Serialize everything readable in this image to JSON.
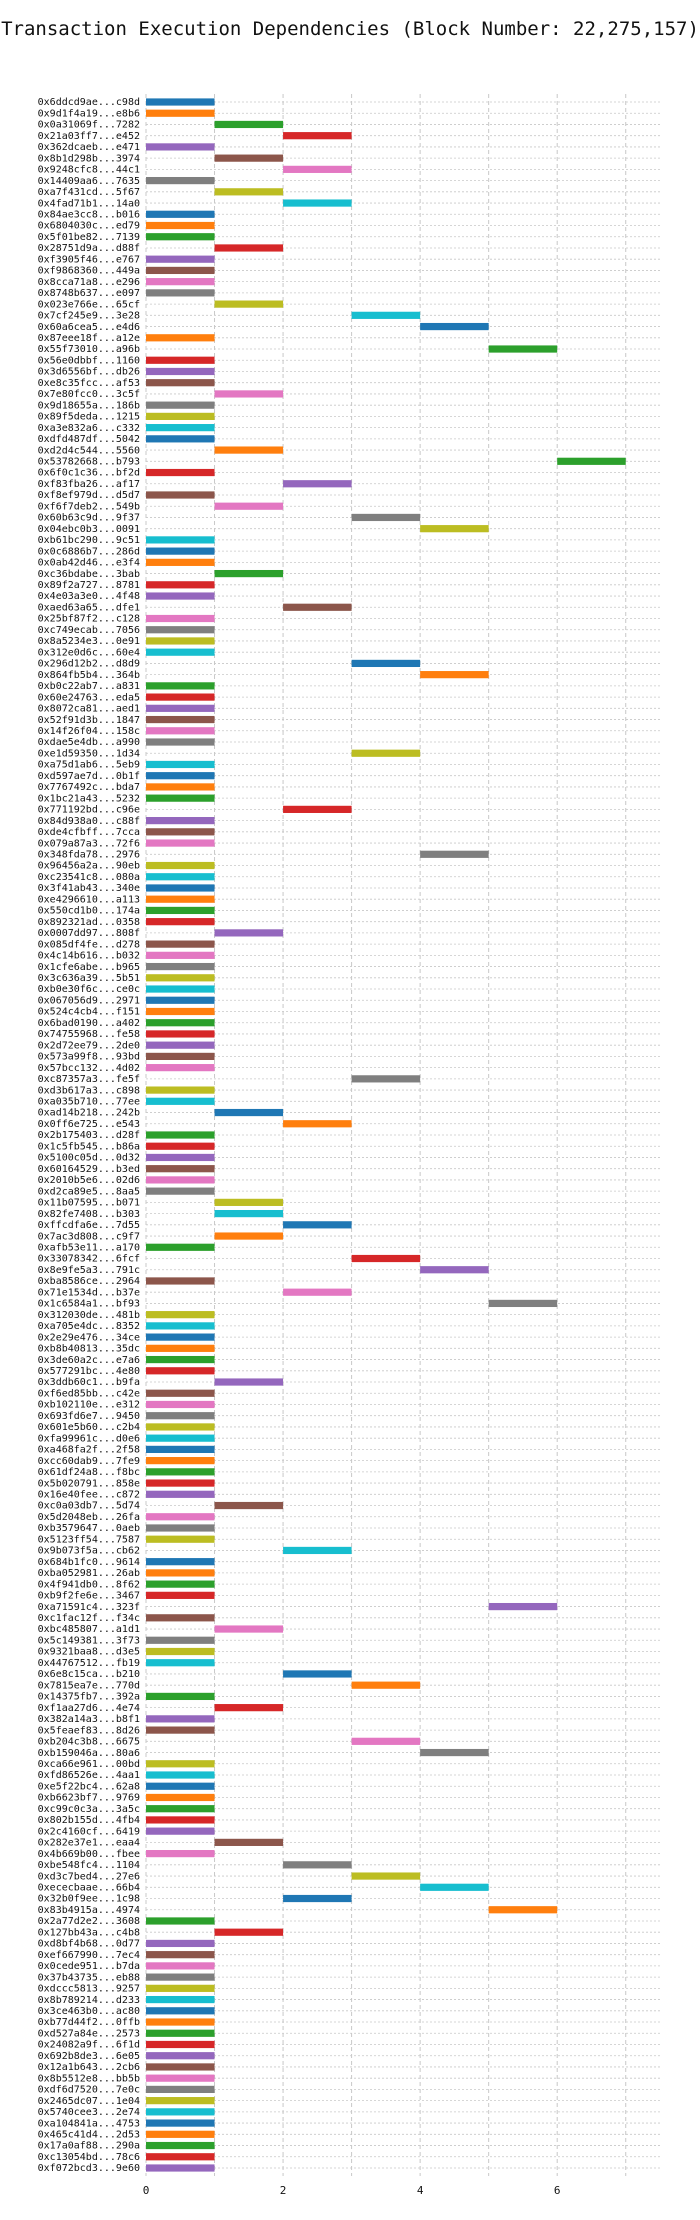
{
  "chart_data": {
    "type": "bar",
    "orientation": "horizontal",
    "title": "Transaction Execution Dependencies (Block Number: 22,275,157)",
    "xlabel": "",
    "ylabel": "",
    "xlim": [
      0,
      7.5
    ],
    "xticks": [
      "0",
      "2",
      "4",
      "6"
    ],
    "grid": true,
    "palette": [
      "#1f77b4",
      "#ff7f0e",
      "#2ca02c",
      "#d62728",
      "#9467bd",
      "#8c564b",
      "#e377c2",
      "#7f7f7f",
      "#bcbd22",
      "#17becf"
    ],
    "transactions": [
      {
        "id": "0x6ddcd9ae...c98d",
        "start": 0,
        "end": 1
      },
      {
        "id": "0x9d1f4a19...e8b6",
        "start": 0,
        "end": 1
      },
      {
        "id": "0x0a31069f...7282",
        "start": 1,
        "end": 2
      },
      {
        "id": "0x21a03ff7...e452",
        "start": 2,
        "end": 3
      },
      {
        "id": "0x362dcaeb...e471",
        "start": 0,
        "end": 1
      },
      {
        "id": "0x8b1d298b...3974",
        "start": 1,
        "end": 2
      },
      {
        "id": "0x9248cfc8...44c1",
        "start": 2,
        "end": 3
      },
      {
        "id": "0x14409aa6...7635",
        "start": 0,
        "end": 1
      },
      {
        "id": "0xa7f431cd...5f67",
        "start": 1,
        "end": 2
      },
      {
        "id": "0x4fad71b1...14a0",
        "start": 2,
        "end": 3
      },
      {
        "id": "0x84ae3cc8...b016",
        "start": 0,
        "end": 1
      },
      {
        "id": "0x6804030c...ed79",
        "start": 0,
        "end": 1
      },
      {
        "id": "0x5f01be82...7139",
        "start": 0,
        "end": 1
      },
      {
        "id": "0x28751d9a...d88f",
        "start": 1,
        "end": 2
      },
      {
        "id": "0xf3905f46...e767",
        "start": 0,
        "end": 1
      },
      {
        "id": "0xf9868360...449a",
        "start": 0,
        "end": 1
      },
      {
        "id": "0x8cca71a8...e296",
        "start": 0,
        "end": 1
      },
      {
        "id": "0x8748b637...e097",
        "start": 0,
        "end": 1
      },
      {
        "id": "0x023e766e...65cf",
        "start": 1,
        "end": 2
      },
      {
        "id": "0x7cf245e9...3e28",
        "start": 3,
        "end": 4
      },
      {
        "id": "0x60a6cea5...e4d6",
        "start": 4,
        "end": 5
      },
      {
        "id": "0x87eee18f...a12e",
        "start": 0,
        "end": 1
      },
      {
        "id": "0x55f73010...a96b",
        "start": 5,
        "end": 6
      },
      {
        "id": "0x56e0dbbf...1160",
        "start": 0,
        "end": 1
      },
      {
        "id": "0x3d6556bf...db26",
        "start": 0,
        "end": 1
      },
      {
        "id": "0xe8c35fcc...af53",
        "start": 0,
        "end": 1
      },
      {
        "id": "0x7e80fcc0...3c5f",
        "start": 1,
        "end": 2
      },
      {
        "id": "0x9d18655a...186b",
        "start": 0,
        "end": 1
      },
      {
        "id": "0x89f5deda...1215",
        "start": 0,
        "end": 1
      },
      {
        "id": "0xa3e832a6...c332",
        "start": 0,
        "end": 1
      },
      {
        "id": "0xdfd487df...5042",
        "start": 0,
        "end": 1
      },
      {
        "id": "0xd2d4c544...5560",
        "start": 1,
        "end": 2
      },
      {
        "id": "0x53782668...b793",
        "start": 6,
        "end": 7
      },
      {
        "id": "0x6f0c1c36...bf2d",
        "start": 0,
        "end": 1
      },
      {
        "id": "0xf83fba26...af17",
        "start": 2,
        "end": 3
      },
      {
        "id": "0xf8ef979d...d5d7",
        "start": 0,
        "end": 1
      },
      {
        "id": "0xf6f7deb2...549b",
        "start": 1,
        "end": 2
      },
      {
        "id": "0x60b63c9d...9f37",
        "start": 3,
        "end": 4
      },
      {
        "id": "0x04ebc0b3...0091",
        "start": 4,
        "end": 5
      },
      {
        "id": "0xb61bc290...9c51",
        "start": 0,
        "end": 1
      },
      {
        "id": "0x0c6886b7...286d",
        "start": 0,
        "end": 1
      },
      {
        "id": "0x0ab42d46...e3f4",
        "start": 0,
        "end": 1
      },
      {
        "id": "0xc36bdabe...3bab",
        "start": 1,
        "end": 2
      },
      {
        "id": "0x89f2a727...8781",
        "start": 0,
        "end": 1
      },
      {
        "id": "0x4e03a3e0...4f48",
        "start": 0,
        "end": 1
      },
      {
        "id": "0xaed63a65...dfe1",
        "start": 2,
        "end": 3
      },
      {
        "id": "0x25bf87f2...c128",
        "start": 0,
        "end": 1
      },
      {
        "id": "0xc749ecab...7056",
        "start": 0,
        "end": 1
      },
      {
        "id": "0x8a5234e3...0e91",
        "start": 0,
        "end": 1
      },
      {
        "id": "0x312e0d6c...60e4",
        "start": 0,
        "end": 1
      },
      {
        "id": "0x296d12b2...d8d9",
        "start": 3,
        "end": 4
      },
      {
        "id": "0x864fb5b4...364b",
        "start": 4,
        "end": 5
      },
      {
        "id": "0xb0c22ab7...a831",
        "start": 0,
        "end": 1
      },
      {
        "id": "0x60e24763...eda5",
        "start": 0,
        "end": 1
      },
      {
        "id": "0x8072ca81...aed1",
        "start": 0,
        "end": 1
      },
      {
        "id": "0x52f91d3b...1847",
        "start": 0,
        "end": 1
      },
      {
        "id": "0x14f26f04...158c",
        "start": 0,
        "end": 1
      },
      {
        "id": "0xdae5e4db...a990",
        "start": 0,
        "end": 1
      },
      {
        "id": "0xe1d59350...1d34",
        "start": 3,
        "end": 4
      },
      {
        "id": "0xa75d1ab6...5eb9",
        "start": 0,
        "end": 1
      },
      {
        "id": "0xd597ae7d...0b1f",
        "start": 0,
        "end": 1
      },
      {
        "id": "0x7767492c...bda7",
        "start": 0,
        "end": 1
      },
      {
        "id": "0x1bc21a43...5232",
        "start": 0,
        "end": 1
      },
      {
        "id": "0x771192bd...c96e",
        "start": 2,
        "end": 3
      },
      {
        "id": "0x84d938a0...c88f",
        "start": 0,
        "end": 1
      },
      {
        "id": "0xde4cfbff...7cca",
        "start": 0,
        "end": 1
      },
      {
        "id": "0x079a87a3...72f6",
        "start": 0,
        "end": 1
      },
      {
        "id": "0x348fda78...2976",
        "start": 4,
        "end": 5
      },
      {
        "id": "0x96456a2a...90eb",
        "start": 0,
        "end": 1
      },
      {
        "id": "0xc23541c8...080a",
        "start": 0,
        "end": 1
      },
      {
        "id": "0x3f41ab43...340e",
        "start": 0,
        "end": 1
      },
      {
        "id": "0xe4296610...a113",
        "start": 0,
        "end": 1
      },
      {
        "id": "0x550cd1b0...174a",
        "start": 0,
        "end": 1
      },
      {
        "id": "0x892321ad...0358",
        "start": 0,
        "end": 1
      },
      {
        "id": "0x0007dd97...808f",
        "start": 1,
        "end": 2
      },
      {
        "id": "0x085df4fe...d278",
        "start": 0,
        "end": 1
      },
      {
        "id": "0x4c14b616...b032",
        "start": 0,
        "end": 1
      },
      {
        "id": "0x1cfe6abe...b965",
        "start": 0,
        "end": 1
      },
      {
        "id": "0x3c636a39...5b51",
        "start": 0,
        "end": 1
      },
      {
        "id": "0xb0e30f6c...ce0c",
        "start": 0,
        "end": 1
      },
      {
        "id": "0x067056d9...2971",
        "start": 0,
        "end": 1
      },
      {
        "id": "0x524c4cb4...f151",
        "start": 0,
        "end": 1
      },
      {
        "id": "0x6bad0190...a402",
        "start": 0,
        "end": 1
      },
      {
        "id": "0x74755968...fe58",
        "start": 0,
        "end": 1
      },
      {
        "id": "0x2d72ee79...2de0",
        "start": 0,
        "end": 1
      },
      {
        "id": "0x573a99f8...93bd",
        "start": 0,
        "end": 1
      },
      {
        "id": "0x57bcc132...4d02",
        "start": 0,
        "end": 1
      },
      {
        "id": "0xc87357a3...fe5f",
        "start": 3,
        "end": 4
      },
      {
        "id": "0xd3b617a3...c898",
        "start": 0,
        "end": 1
      },
      {
        "id": "0xa035b710...77ee",
        "start": 0,
        "end": 1
      },
      {
        "id": "0xad14b218...242b",
        "start": 1,
        "end": 2
      },
      {
        "id": "0x0ff6e725...e543",
        "start": 2,
        "end": 3
      },
      {
        "id": "0x2b175403...d28f",
        "start": 0,
        "end": 1
      },
      {
        "id": "0x1c5fb545...b86a",
        "start": 0,
        "end": 1
      },
      {
        "id": "0x5100c05d...0d32",
        "start": 0,
        "end": 1
      },
      {
        "id": "0x60164529...b3ed",
        "start": 0,
        "end": 1
      },
      {
        "id": "0x2010b5e6...02d6",
        "start": 0,
        "end": 1
      },
      {
        "id": "0xd2ca89e5...8aa5",
        "start": 0,
        "end": 1
      },
      {
        "id": "0x11b07595...b071",
        "start": 1,
        "end": 2
      },
      {
        "id": "0x82fe7408...b303",
        "start": 1,
        "end": 2
      },
      {
        "id": "0xffcdfa6e...7d55",
        "start": 2,
        "end": 3
      },
      {
        "id": "0x7ac3d808...c9f7",
        "start": 1,
        "end": 2
      },
      {
        "id": "0xafb53e11...a170",
        "start": 0,
        "end": 1
      },
      {
        "id": "0x33078342...6fcf",
        "start": 3,
        "end": 4
      },
      {
        "id": "0x8e9fe5a3...791c",
        "start": 4,
        "end": 5
      },
      {
        "id": "0xba8586ce...2964",
        "start": 0,
        "end": 1
      },
      {
        "id": "0x71e1534d...b37e",
        "start": 2,
        "end": 3
      },
      {
        "id": "0x1c6584a1...bf93",
        "start": 5,
        "end": 6
      },
      {
        "id": "0x312030de...481b",
        "start": 0,
        "end": 1
      },
      {
        "id": "0xa705e4dc...8352",
        "start": 0,
        "end": 1
      },
      {
        "id": "0x2e29e476...34ce",
        "start": 0,
        "end": 1
      },
      {
        "id": "0xb8b40813...35dc",
        "start": 0,
        "end": 1
      },
      {
        "id": "0x3de60a2c...e7a6",
        "start": 0,
        "end": 1
      },
      {
        "id": "0x577291bc...4e80",
        "start": 0,
        "end": 1
      },
      {
        "id": "0x3ddb60c1...b9fa",
        "start": 1,
        "end": 2
      },
      {
        "id": "0xf6ed85bb...c42e",
        "start": 0,
        "end": 1
      },
      {
        "id": "0xb102110e...e312",
        "start": 0,
        "end": 1
      },
      {
        "id": "0x693fd6e7...9450",
        "start": 0,
        "end": 1
      },
      {
        "id": "0x601e5b60...c2b4",
        "start": 0,
        "end": 1
      },
      {
        "id": "0xfa99961c...d0e6",
        "start": 0,
        "end": 1
      },
      {
        "id": "0xa468fa2f...2f58",
        "start": 0,
        "end": 1
      },
      {
        "id": "0xcc60dab9...7fe9",
        "start": 0,
        "end": 1
      },
      {
        "id": "0x61df24a8...f8bc",
        "start": 0,
        "end": 1
      },
      {
        "id": "0x5b020791...858e",
        "start": 0,
        "end": 1
      },
      {
        "id": "0x16e40fee...c872",
        "start": 0,
        "end": 1
      },
      {
        "id": "0xc0a03db7...5d74",
        "start": 1,
        "end": 2
      },
      {
        "id": "0x5d2048eb...26fa",
        "start": 0,
        "end": 1
      },
      {
        "id": "0xb3579647...0aeb",
        "start": 0,
        "end": 1
      },
      {
        "id": "0x5123ff54...7587",
        "start": 0,
        "end": 1
      },
      {
        "id": "0x9b073f5a...cb62",
        "start": 2,
        "end": 3
      },
      {
        "id": "0x684b1fc0...9614",
        "start": 0,
        "end": 1
      },
      {
        "id": "0xba052981...26ab",
        "start": 0,
        "end": 1
      },
      {
        "id": "0x4f941db0...8f62",
        "start": 0,
        "end": 1
      },
      {
        "id": "0xb9f2fe6e...3467",
        "start": 0,
        "end": 1
      },
      {
        "id": "0xa71591c4...323f",
        "start": 5,
        "end": 6
      },
      {
        "id": "0xc1fac12f...f34c",
        "start": 0,
        "end": 1
      },
      {
        "id": "0xbc485807...a1d1",
        "start": 1,
        "end": 2
      },
      {
        "id": "0x5c149381...3f73",
        "start": 0,
        "end": 1
      },
      {
        "id": "0x9321baa8...d3e5",
        "start": 0,
        "end": 1
      },
      {
        "id": "0x44767512...fb19",
        "start": 0,
        "end": 1
      },
      {
        "id": "0x6e8c15ca...b210",
        "start": 2,
        "end": 3
      },
      {
        "id": "0x7815ea7e...770d",
        "start": 3,
        "end": 4
      },
      {
        "id": "0x14375fb7...392a",
        "start": 0,
        "end": 1
      },
      {
        "id": "0xf1aa27d6...4e74",
        "start": 1,
        "end": 2
      },
      {
        "id": "0x382a14a3...b8f1",
        "start": 0,
        "end": 1
      },
      {
        "id": "0x5feaef83...8d26",
        "start": 0,
        "end": 1
      },
      {
        "id": "0xb204c3b8...6675",
        "start": 3,
        "end": 4
      },
      {
        "id": "0xb159046a...80a6",
        "start": 4,
        "end": 5
      },
      {
        "id": "0xca66e961...00bd",
        "start": 0,
        "end": 1
      },
      {
        "id": "0xfd86526e...4aa1",
        "start": 0,
        "end": 1
      },
      {
        "id": "0xe5f22bc4...62a8",
        "start": 0,
        "end": 1
      },
      {
        "id": "0xb6623bf7...9769",
        "start": 0,
        "end": 1
      },
      {
        "id": "0xc99c0c3a...3a5c",
        "start": 0,
        "end": 1
      },
      {
        "id": "0x802b155d...4fb4",
        "start": 0,
        "end": 1
      },
      {
        "id": "0x2c4160cf...6419",
        "start": 0,
        "end": 1
      },
      {
        "id": "0x282e37e1...eaa4",
        "start": 1,
        "end": 2
      },
      {
        "id": "0x4b669b00...fbee",
        "start": 0,
        "end": 1
      },
      {
        "id": "0xbe548fc4...1104",
        "start": 2,
        "end": 3
      },
      {
        "id": "0xd3c7bed4...27e6",
        "start": 3,
        "end": 4
      },
      {
        "id": "0xececbaae...66b4",
        "start": 4,
        "end": 5
      },
      {
        "id": "0x32b0f9ee...1c98",
        "start": 2,
        "end": 3
      },
      {
        "id": "0x83b4915a...4974",
        "start": 5,
        "end": 6
      },
      {
        "id": "0x2a77d2e2...3608",
        "start": 0,
        "end": 1
      },
      {
        "id": "0x127bb43a...c4b8",
        "start": 1,
        "end": 2
      },
      {
        "id": "0xd8bf4b68...0d77",
        "start": 0,
        "end": 1
      },
      {
        "id": "0xef667990...7ec4",
        "start": 0,
        "end": 1
      },
      {
        "id": "0x0cede951...b7da",
        "start": 0,
        "end": 1
      },
      {
        "id": "0x37b43735...eb88",
        "start": 0,
        "end": 1
      },
      {
        "id": "0xdccc5813...9257",
        "start": 0,
        "end": 1
      },
      {
        "id": "0x8b789214...d233",
        "start": 0,
        "end": 1
      },
      {
        "id": "0x3ce463b0...ac80",
        "start": 0,
        "end": 1
      },
      {
        "id": "0xb77d44f2...0ffb",
        "start": 0,
        "end": 1
      },
      {
        "id": "0xd527a84e...2573",
        "start": 0,
        "end": 1
      },
      {
        "id": "0x24082a9f...6f1d",
        "start": 0,
        "end": 1
      },
      {
        "id": "0x692b8de3...6e05",
        "start": 0,
        "end": 1
      },
      {
        "id": "0x12a1b643...2cb6",
        "start": 0,
        "end": 1
      },
      {
        "id": "0x8b5512e8...bb5b",
        "start": 0,
        "end": 1
      },
      {
        "id": "0xdf6d7520...7e0c",
        "start": 0,
        "end": 1
      },
      {
        "id": "0x2465dc07...1e04",
        "start": 0,
        "end": 1
      },
      {
        "id": "0x5740cee3...2e74",
        "start": 0,
        "end": 1
      },
      {
        "id": "0xa104841a...4753",
        "start": 0,
        "end": 1
      },
      {
        "id": "0x465c41d4...2d53",
        "start": 0,
        "end": 1
      },
      {
        "id": "0x17a0af88...290a",
        "start": 0,
        "end": 1
      },
      {
        "id": "0xc13054bd...78c6",
        "start": 0,
        "end": 1
      },
      {
        "id": "0xf072bcd3...9e60",
        "start": 0,
        "end": 1
      }
    ]
  }
}
